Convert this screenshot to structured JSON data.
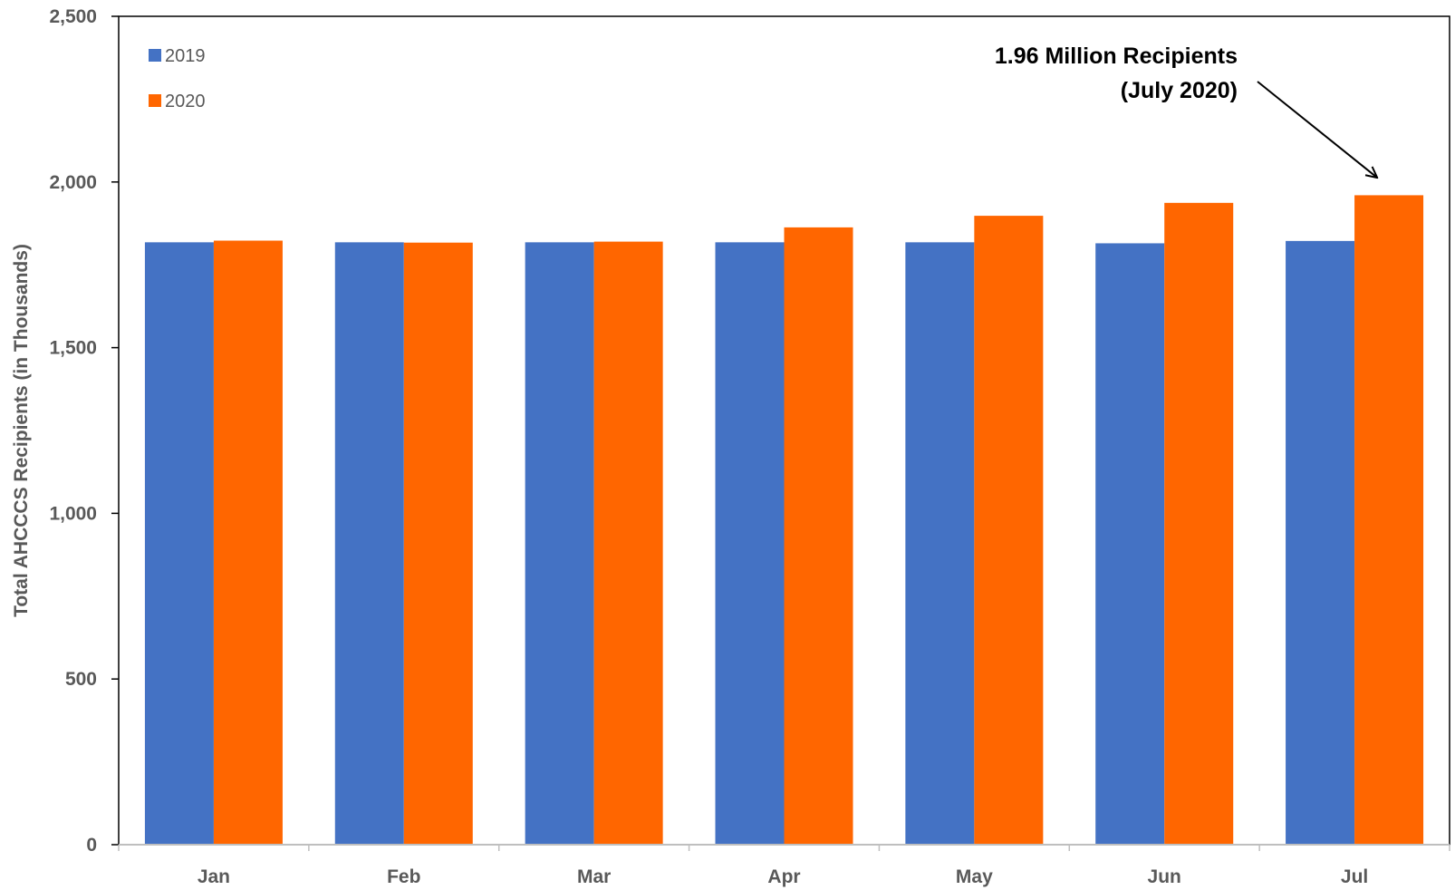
{
  "chart_data": {
    "type": "bar",
    "categories": [
      "Jan",
      "Feb",
      "Mar",
      "Apr",
      "May",
      "Jun",
      "Jul"
    ],
    "series": [
      {
        "name": "2019",
        "color": "#4472C4",
        "values": [
          1818,
          1818,
          1818,
          1818,
          1818,
          1815,
          1822
        ]
      },
      {
        "name": "2020",
        "color": "#FF6600",
        "values": [
          1823,
          1817,
          1820,
          1863,
          1898,
          1937,
          1960
        ]
      }
    ],
    "ylabel": "Total  AHCCCS Recipients (in Thousands)",
    "ylim": [
      0,
      2500
    ],
    "yticks": [
      0,
      500,
      1000,
      1500,
      2000,
      2500
    ],
    "ytick_labels": [
      "0",
      "500",
      "1,000",
      "1,500",
      "2,000",
      "2,500"
    ],
    "grid": false,
    "legend_position": "top-left",
    "annotation": {
      "lines": [
        "1.96 Million Recipients",
        "(July 2020)"
      ],
      "points_to": {
        "category": "Jul",
        "series": "2020"
      }
    }
  }
}
